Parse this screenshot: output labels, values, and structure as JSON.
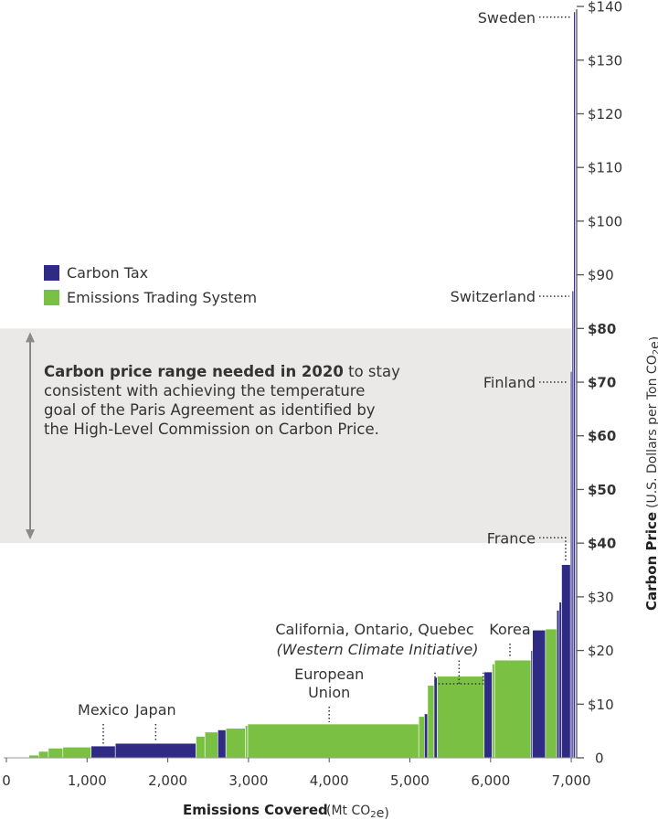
{
  "chart_data": {
    "type": "bar",
    "subtype": "variable-width cumulative bar (carbon pricing initiatives)",
    "xlabel": "Emissions Covered",
    "xlabel_unit": "(Mt CO₂e)",
    "ylabel": "Carbon Price",
    "ylabel_unit": "(U.S. Dollars per Ton CO₂e)",
    "xlim": [
      0,
      7100
    ],
    "ylim": [
      0,
      140
    ],
    "x_ticks": [
      {
        "value": 0,
        "label": "0"
      },
      {
        "value": 1000,
        "label": "1,000"
      },
      {
        "value": 2000,
        "label": "2,000"
      },
      {
        "value": 3000,
        "label": "3,000"
      },
      {
        "value": 4000,
        "label": "4,000"
      },
      {
        "value": 5000,
        "label": "5,000"
      },
      {
        "value": 6000,
        "label": "6,000"
      },
      {
        "value": 7000,
        "label": "7,000"
      }
    ],
    "y_ticks": [
      {
        "value": 0,
        "label": "0"
      },
      {
        "value": 10,
        "label": "$10"
      },
      {
        "value": 20,
        "label": "$20"
      },
      {
        "value": 30,
        "label": "$30"
      },
      {
        "value": 40,
        "label": "$40"
      },
      {
        "value": 50,
        "label": "$50"
      },
      {
        "value": 60,
        "label": "$60"
      },
      {
        "value": 70,
        "label": "$70"
      },
      {
        "value": 80,
        "label": "$80"
      },
      {
        "value": 90,
        "label": "$90"
      },
      {
        "value": 100,
        "label": "$100"
      },
      {
        "value": 110,
        "label": "$110"
      },
      {
        "value": 120,
        "label": "$120"
      },
      {
        "value": 130,
        "label": "$130"
      },
      {
        "value": 140,
        "label": "$140"
      }
    ],
    "y_ticks_bold": [
      40,
      50,
      60,
      70,
      80
    ],
    "legend": {
      "placement": "upper-left",
      "items": [
        {
          "label": "Carbon Tax",
          "color": "#2f2b85"
        },
        {
          "label": "Emissions Trading System",
          "color": "#7ac143"
        }
      ]
    },
    "colors": {
      "tax": "#2f2b85",
      "ets": "#7ac143",
      "band": "#ebe8e8",
      "axis": "#555555",
      "arrow": "#8a8a8a"
    },
    "band": {
      "ymin": 40,
      "ymax": 80,
      "text_bold": "Carbon price range needed in 2020",
      "text_lines": [
        " to stay",
        "consistent with achieving the temperature",
        "goal of the Paris Agreement as identified by",
        "the High-Level Commission on Carbon Price."
      ]
    },
    "segments": [
      {
        "x0": 280,
        "x1": 400,
        "y": 0.5,
        "kind": "ets"
      },
      {
        "x0": 400,
        "x1": 520,
        "y": 1.2,
        "kind": "ets"
      },
      {
        "x0": 520,
        "x1": 700,
        "y": 1.8,
        "kind": "ets"
      },
      {
        "x0": 700,
        "x1": 1050,
        "y": 2.0,
        "kind": "ets"
      },
      {
        "x0": 1050,
        "x1": 1350,
        "y": 2.2,
        "kind": "tax"
      },
      {
        "x0": 1350,
        "x1": 2350,
        "y": 2.7,
        "kind": "tax"
      },
      {
        "x0": 2350,
        "x1": 2460,
        "y": 4.0,
        "kind": "ets"
      },
      {
        "x0": 2460,
        "x1": 2620,
        "y": 4.8,
        "kind": "ets"
      },
      {
        "x0": 2620,
        "x1": 2720,
        "y": 5.2,
        "kind": "tax"
      },
      {
        "x0": 2720,
        "x1": 2960,
        "y": 5.5,
        "kind": "ets"
      },
      {
        "x0": 2960,
        "x1": 2990,
        "y": 6.0,
        "kind": "ets"
      },
      {
        "x0": 2990,
        "x1": 5110,
        "y": 6.3,
        "kind": "ets"
      },
      {
        "x0": 5110,
        "x1": 5180,
        "y": 7.7,
        "kind": "ets"
      },
      {
        "x0": 5180,
        "x1": 5220,
        "y": 8.2,
        "kind": "tax"
      },
      {
        "x0": 5220,
        "x1": 5300,
        "y": 13.5,
        "kind": "ets"
      },
      {
        "x0": 5300,
        "x1": 5340,
        "y": 15.0,
        "kind": "tax"
      },
      {
        "x0": 5340,
        "x1": 5920,
        "y": 15.2,
        "kind": "ets"
      },
      {
        "x0": 5920,
        "x1": 6020,
        "y": 16.0,
        "kind": "tax"
      },
      {
        "x0": 6020,
        "x1": 6050,
        "y": 17.5,
        "kind": "ets"
      },
      {
        "x0": 6050,
        "x1": 6500,
        "y": 18.2,
        "kind": "ets"
      },
      {
        "x0": 6500,
        "x1": 6520,
        "y": 20.0,
        "kind": "tax"
      },
      {
        "x0": 6520,
        "x1": 6680,
        "y": 23.8,
        "kind": "tax"
      },
      {
        "x0": 6680,
        "x1": 6820,
        "y": 24.0,
        "kind": "ets"
      },
      {
        "x0": 6820,
        "x1": 6850,
        "y": 27.5,
        "kind": "tax"
      },
      {
        "x0": 6850,
        "x1": 6880,
        "y": 29.0,
        "kind": "tax"
      },
      {
        "x0": 6880,
        "x1": 6990,
        "y": 36.0,
        "kind": "tax"
      },
      {
        "x0": 6990,
        "x1": 7010,
        "y": 72.0,
        "kind": "tax"
      },
      {
        "x0": 7010,
        "x1": 7030,
        "y": 87.0,
        "kind": "tax"
      },
      {
        "x0": 7030,
        "x1": 7050,
        "y": 139.0,
        "kind": "tax"
      }
    ],
    "annotations": [
      {
        "lines": [
          "Mexico"
        ],
        "anchor_x": 1200,
        "bar_y": 2.2,
        "style": "vline"
      },
      {
        "lines": [
          "Japan"
        ],
        "anchor_x": 1850,
        "bar_y": 2.7,
        "style": "vline"
      },
      {
        "lines": [
          "European",
          "Union"
        ],
        "anchor_x": 4000,
        "bar_y": 6.3,
        "style": "vline"
      },
      {
        "lines": [
          "Korea"
        ],
        "anchor_x": 6240,
        "bar_y": 18.2,
        "style": "vline"
      },
      {
        "lines": [
          "California, Ontario, Quebec",
          "(Western Climate Initiative)"
        ],
        "italic_line": 1,
        "bracket_x": [
          5300,
          5920
        ],
        "bar_y": 15.2,
        "style": "bracket"
      },
      {
        "lines": [
          "France"
        ],
        "target_x": 6930,
        "target_y": 36.0,
        "label_y": 41.0,
        "style": "elbow"
      },
      {
        "lines": [
          "Finland"
        ],
        "target_x": 7000,
        "target_y": 70.0,
        "label_y": 70.0,
        "style": "hline"
      },
      {
        "lines": [
          "Switzerland"
        ],
        "target_x": 7020,
        "target_y": 86.0,
        "label_y": 86.0,
        "style": "hline"
      },
      {
        "lines": [
          "Sweden"
        ],
        "target_x": 7040,
        "target_y": 138.0,
        "label_y": 138.0,
        "style": "hline"
      }
    ]
  }
}
